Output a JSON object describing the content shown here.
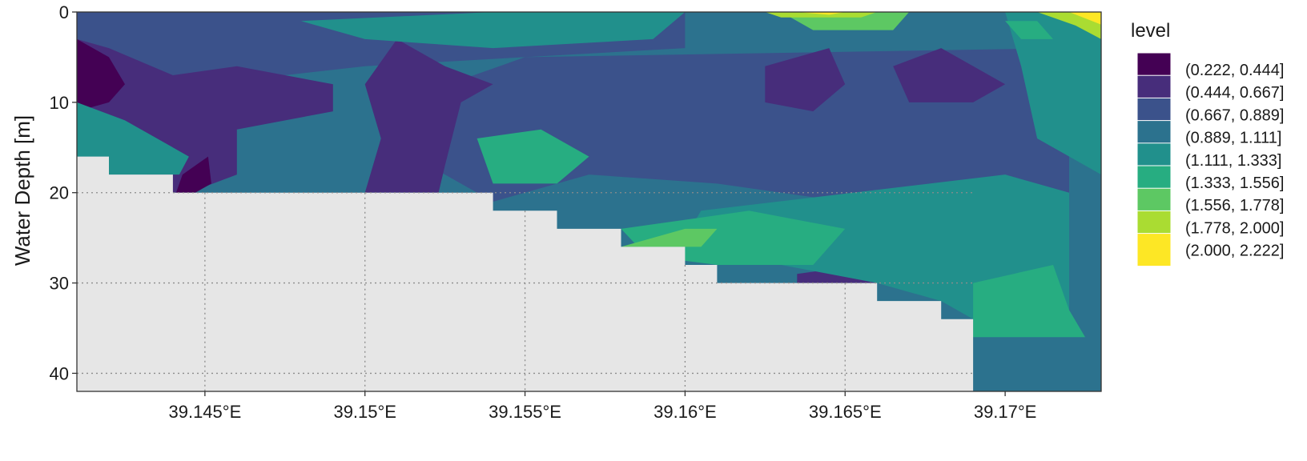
{
  "chart_data": {
    "type": "heatmap",
    "xlabel": "",
    "ylabel": "Water Depth [m]",
    "xlim": [
      39.141,
      39.173
    ],
    "ylim": [
      42,
      0
    ],
    "x_ticks": [
      39.145,
      39.15,
      39.155,
      39.16,
      39.165,
      39.17
    ],
    "x_tick_labels": [
      "39.145°E",
      "39.15°E",
      "39.155°E",
      "39.16°E",
      "39.165°E",
      "39.17°E"
    ],
    "y_ticks": [
      0,
      10,
      20,
      30,
      40
    ],
    "y_tick_labels": [
      "0",
      "10",
      "20",
      "30",
      "40"
    ],
    "grid": "dotted, shown over seabed area",
    "legend": {
      "title": "level",
      "placement": "right",
      "entries": [
        {
          "label": "(0.222, 0.444]",
          "color": "#440154"
        },
        {
          "label": "(0.444, 0.667]",
          "color": "#472D7B"
        },
        {
          "label": "(0.667, 0.889]",
          "color": "#3B528B"
        },
        {
          "label": "(0.889, 1.111]",
          "color": "#2C728E"
        },
        {
          "label": "(1.111, 1.333]",
          "color": "#21908C"
        },
        {
          "label": "(1.333, 1.556]",
          "color": "#27AD81"
        },
        {
          "label": "(1.556, 1.778]",
          "color": "#5DC863"
        },
        {
          "label": "(1.778, 2.000]",
          "color": "#AADC32"
        },
        {
          "label": "(2.000, 2.222]",
          "color": "#FDE725"
        }
      ]
    },
    "seabed_color": "#E6E6E6",
    "seabed_profile": [
      {
        "lon": 39.141,
        "depth": 16
      },
      {
        "lon": 39.142,
        "depth": 18
      },
      {
        "lon": 39.144,
        "depth": 20
      },
      {
        "lon": 39.154,
        "depth": 22
      },
      {
        "lon": 39.156,
        "depth": 24
      },
      {
        "lon": 39.158,
        "depth": 26
      },
      {
        "lon": 39.16,
        "depth": 28
      },
      {
        "lon": 39.161,
        "depth": 30
      },
      {
        "lon": 39.166,
        "depth": 32
      },
      {
        "lon": 39.168,
        "depth": 34
      },
      {
        "lon": 39.169,
        "depth": 42
      }
    ],
    "level_regions": [
      {
        "level": 3,
        "points": [
          [
            39.141,
            0
          ],
          [
            39.173,
            0
          ],
          [
            39.173,
            42
          ],
          [
            39.169,
            42
          ],
          [
            39.169,
            34
          ],
          [
            39.168,
            34
          ],
          [
            39.168,
            32
          ],
          [
            39.166,
            32
          ],
          [
            39.166,
            30
          ],
          [
            39.161,
            30
          ],
          [
            39.161,
            28
          ],
          [
            39.16,
            28
          ],
          [
            39.16,
            26
          ],
          [
            39.158,
            26
          ],
          [
            39.158,
            24
          ],
          [
            39.156,
            24
          ],
          [
            39.156,
            22
          ],
          [
            39.154,
            22
          ],
          [
            39.154,
            20
          ],
          [
            39.144,
            20
          ],
          [
            39.144,
            18
          ],
          [
            39.142,
            18
          ],
          [
            39.142,
            16
          ],
          [
            39.141,
            16
          ]
        ]
      },
      {
        "level": 2,
        "points": [
          [
            39.141,
            0
          ],
          [
            39.16,
            0
          ],
          [
            39.16,
            4
          ],
          [
            39.15,
            6
          ],
          [
            39.145,
            8
          ],
          [
            39.141,
            13
          ]
        ]
      },
      {
        "level": 2,
        "points": [
          [
            39.155,
            5
          ],
          [
            39.172,
            4
          ],
          [
            39.172,
            22
          ],
          [
            39.168,
            22
          ],
          [
            39.165,
            21
          ],
          [
            39.161,
            19
          ],
          [
            39.157,
            18
          ],
          [
            39.154,
            21
          ],
          [
            39.152,
            17
          ],
          [
            39.151,
            10
          ]
        ]
      },
      {
        "level": 1,
        "points": [
          [
            39.141,
            3
          ],
          [
            39.142,
            4
          ],
          [
            39.144,
            7
          ],
          [
            39.146,
            6
          ],
          [
            39.149,
            8
          ],
          [
            39.149,
            11
          ],
          [
            39.146,
            13
          ],
          [
            39.146,
            18
          ],
          [
            39.1445,
            20
          ],
          [
            39.144,
            20
          ],
          [
            39.1432,
            18
          ],
          [
            39.144,
            15
          ],
          [
            39.143,
            13
          ],
          [
            39.141,
            12
          ]
        ]
      },
      {
        "level": 1,
        "points": [
          [
            39.15,
            8
          ],
          [
            39.151,
            3
          ],
          [
            39.1525,
            6
          ],
          [
            39.154,
            8
          ],
          [
            39.153,
            10
          ],
          [
            39.1525,
            17
          ],
          [
            39.1523,
            20
          ],
          [
            39.15,
            20
          ],
          [
            39.1505,
            14
          ]
        ]
      },
      {
        "level": 1,
        "points": [
          [
            39.1625,
            6
          ],
          [
            39.1645,
            4
          ],
          [
            39.165,
            8
          ],
          [
            39.164,
            11
          ],
          [
            39.1625,
            10
          ]
        ]
      },
      {
        "level": 1,
        "points": [
          [
            39.1665,
            6
          ],
          [
            39.168,
            4
          ],
          [
            39.17,
            8
          ],
          [
            39.169,
            10
          ],
          [
            39.167,
            10
          ]
        ]
      },
      {
        "level": 1,
        "points": [
          [
            39.1635,
            29
          ],
          [
            39.1655,
            28
          ],
          [
            39.1665,
            30
          ],
          [
            39.1635,
            30
          ]
        ]
      },
      {
        "level": 0,
        "points": [
          [
            39.141,
            3
          ],
          [
            39.142,
            5
          ],
          [
            39.1425,
            8
          ],
          [
            39.142,
            10
          ],
          [
            39.141,
            11
          ]
        ]
      },
      {
        "level": 0,
        "points": [
          [
            39.1443,
            18
          ],
          [
            39.1451,
            16
          ],
          [
            39.1452,
            19
          ],
          [
            39.1447,
            20
          ],
          [
            39.1441,
            20
          ]
        ]
      },
      {
        "level": 4,
        "points": [
          [
            39.141,
            10
          ],
          [
            39.1425,
            12
          ],
          [
            39.1445,
            16
          ],
          [
            39.1442,
            18
          ],
          [
            39.142,
            18
          ],
          [
            39.142,
            16
          ],
          [
            39.141,
            16
          ]
        ]
      },
      {
        "level": 4,
        "points": [
          [
            39.148,
            1
          ],
          [
            39.154,
            0
          ],
          [
            39.16,
            0
          ],
          [
            39.159,
            3
          ],
          [
            39.154,
            4
          ],
          [
            39.15,
            3
          ]
        ]
      },
      {
        "level": 4,
        "points": [
          [
            39.1605,
            22
          ],
          [
            39.17,
            18
          ],
          [
            39.172,
            20
          ],
          [
            39.172,
            34
          ],
          [
            39.17,
            34
          ],
          [
            39.169,
            34
          ],
          [
            39.168,
            32
          ],
          [
            39.166,
            30
          ],
          [
            39.163,
            28
          ],
          [
            39.161,
            26
          ],
          [
            39.16,
            25
          ]
        ]
      },
      {
        "level": 4,
        "points": [
          [
            39.17,
            0
          ],
          [
            39.173,
            0
          ],
          [
            39.173,
            18
          ],
          [
            39.171,
            14
          ],
          [
            39.1705,
            6
          ]
        ]
      },
      {
        "level": 5,
        "points": [
          [
            39.1535,
            14
          ],
          [
            39.1555,
            13
          ],
          [
            39.157,
            16
          ],
          [
            39.156,
            19
          ],
          [
            39.154,
            19
          ]
        ]
      },
      {
        "level": 5,
        "points": [
          [
            39.158,
            24
          ],
          [
            39.162,
            22
          ],
          [
            39.165,
            24
          ],
          [
            39.164,
            28
          ],
          [
            39.161,
            28
          ],
          [
            39.1588,
            27
          ]
        ]
      },
      {
        "level": 5,
        "points": [
          [
            39.169,
            30
          ],
          [
            39.1715,
            28
          ],
          [
            39.172,
            33
          ],
          [
            39.1725,
            36
          ],
          [
            39.169,
            36
          ]
        ]
      },
      {
        "level": 5,
        "points": [
          [
            39.17,
            1
          ],
          [
            39.171,
            1
          ],
          [
            39.1715,
            3
          ],
          [
            39.1705,
            3
          ]
        ]
      },
      {
        "level": 6,
        "points": [
          [
            39.158,
            26
          ],
          [
            39.16,
            24
          ],
          [
            39.161,
            24
          ],
          [
            39.1605,
            26
          ]
        ]
      },
      {
        "level": 6,
        "points": [
          [
            39.163,
            0
          ],
          [
            39.167,
            0
          ],
          [
            39.1665,
            2
          ],
          [
            39.164,
            2
          ]
        ]
      },
      {
        "level": 7,
        "points": [
          [
            39.1625,
            0
          ],
          [
            39.166,
            0
          ],
          [
            39.1655,
            0.6
          ],
          [
            39.163,
            0.6
          ]
        ]
      },
      {
        "level": 7,
        "points": [
          [
            39.171,
            0
          ],
          [
            39.173,
            0
          ],
          [
            39.173,
            3
          ],
          [
            39.1722,
            1.5
          ]
        ]
      },
      {
        "level": 8,
        "points": [
          [
            39.1635,
            0
          ],
          [
            39.165,
            0
          ],
          [
            39.1645,
            0.3
          ]
        ]
      },
      {
        "level": 8,
        "points": [
          [
            39.172,
            0
          ],
          [
            39.173,
            0
          ],
          [
            39.173,
            1.4
          ]
        ]
      }
    ]
  }
}
